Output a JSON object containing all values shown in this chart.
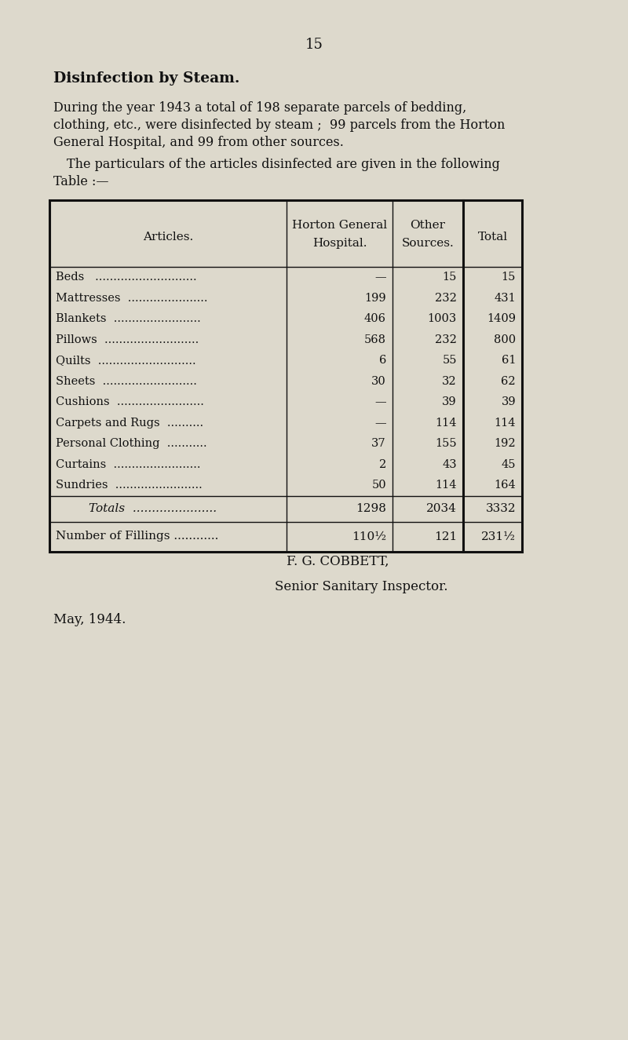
{
  "page_number": "15",
  "title": "Disinfection by Steam.",
  "para1_lines": [
    "During the year 1943 a total of 198 separate parcels of bedding,",
    "clothing, etc., were disinfected by steam ;  99 parcels from the Horton",
    "General Hospital, and 99 from other sources."
  ],
  "para2_lines": [
    "The particulars of the articles disinfected are given in the following",
    "Table :—"
  ],
  "col_header_articles": "Articles.",
  "col_header_horton_1": "Horton General",
  "col_header_horton_2": "Hospital.",
  "col_header_other_1": "Other",
  "col_header_other_2": "Sources.",
  "col_header_total": "Total",
  "dot_labels": [
    "Beds   ............................",
    "Mattresses  ......................",
    "Blankets  ........................",
    "Pillows  ..........................",
    "Quilts  ...........................",
    "Sheets  ..........................",
    "Cushions  ........................",
    "Carpets and Rugs  ..........",
    "Personal Clothing  ...........",
    "Curtains  ........................",
    "Sundries  ........................"
  ],
  "col1_vals": [
    "—",
    "199",
    "406",
    "568",
    "6",
    "30",
    "—",
    "—",
    "37",
    "2",
    "50"
  ],
  "col2_vals": [
    "15",
    "232",
    "1003",
    "232",
    "55",
    "32",
    "39",
    "114",
    "155",
    "43",
    "114"
  ],
  "col3_vals": [
    "15",
    "431",
    "1409",
    "800",
    "61",
    "62",
    "39",
    "114",
    "192",
    "45",
    "164"
  ],
  "totals_label": "Totals  ......................",
  "totals_col1": "1298",
  "totals_col2": "2034",
  "totals_col3": "3332",
  "fillings_label": "Number of Fillings ............",
  "fillings_col1": "110½",
  "fillings_col2": "121",
  "fillings_col3": "231½",
  "sig1": "F. G. COBBETT,",
  "sig2": "Senior Sanitary Inspector.",
  "date": "May, 1944.",
  "bg_color": "#ddd9cc",
  "text_color": "#111111"
}
